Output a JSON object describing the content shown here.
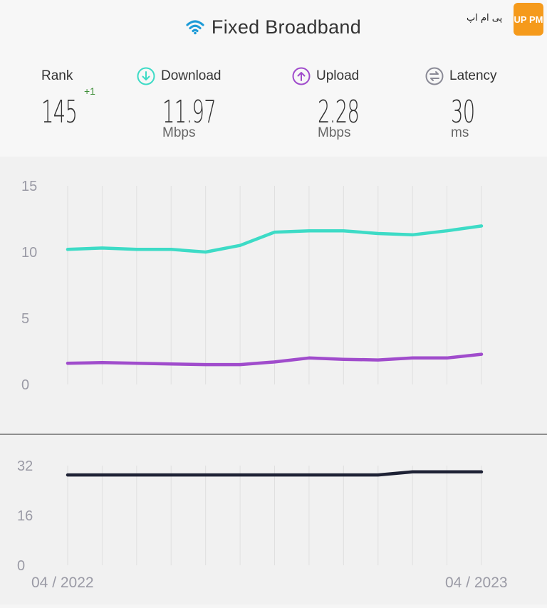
{
  "header": {
    "title": "Fixed Broadband",
    "wifi_icon": "wifi-icon",
    "logo_text": "پی ام اپ",
    "logo_badge": "UP PM"
  },
  "metrics": {
    "rank": {
      "label": "Rank",
      "value": "145",
      "change": "+1"
    },
    "download": {
      "label": "Download",
      "value": "11.97",
      "unit": "Mbps",
      "icon": "download-arrow-icon",
      "color": "#3ddbc6"
    },
    "upload": {
      "label": "Upload",
      "value": "2.28",
      "unit": "Mbps",
      "icon": "upload-arrow-icon",
      "color": "#a04ccc"
    },
    "latency": {
      "label": "Latency",
      "value": "30",
      "unit": "ms",
      "icon": "latency-arrows-icon",
      "color": "#8a8a96"
    }
  },
  "chart_data": [
    {
      "type": "line",
      "x": [
        "2022-04",
        "2022-05",
        "2022-06",
        "2022-07",
        "2022-08",
        "2022-09",
        "2022-10",
        "2022-11",
        "2022-12",
        "2023-01",
        "2023-02",
        "2023-03",
        "2023-04"
      ],
      "ylim": [
        0,
        15
      ],
      "yticks": [
        "15",
        "10",
        "5",
        "0"
      ],
      "grid": "vertical",
      "series": [
        {
          "name": "Download",
          "color": "#3ddbc6",
          "values": [
            10.2,
            10.3,
            10.2,
            10.2,
            10.0,
            10.5,
            11.5,
            11.6,
            11.6,
            11.4,
            11.3,
            11.6,
            11.97
          ]
        },
        {
          "name": "Upload",
          "color": "#a04ccc",
          "values": [
            1.6,
            1.65,
            1.6,
            1.55,
            1.5,
            1.5,
            1.7,
            2.0,
            1.9,
            1.85,
            2.0,
            2.0,
            2.28
          ]
        }
      ]
    },
    {
      "type": "line",
      "x": [
        "2022-04",
        "2022-05",
        "2022-06",
        "2022-07",
        "2022-08",
        "2022-09",
        "2022-10",
        "2022-11",
        "2022-12",
        "2023-01",
        "2023-02",
        "2023-03",
        "2023-04"
      ],
      "ylim": [
        0,
        32
      ],
      "yticks": [
        "32",
        "16",
        "0"
      ],
      "grid": "vertical",
      "xtick_labels": [
        "04 / 2022",
        "04 / 2023"
      ],
      "series": [
        {
          "name": "Latency",
          "color": "#1e2235",
          "values": [
            29,
            29,
            29,
            29,
            29,
            29,
            29,
            29,
            29,
            29,
            30,
            30,
            30
          ]
        }
      ]
    }
  ]
}
